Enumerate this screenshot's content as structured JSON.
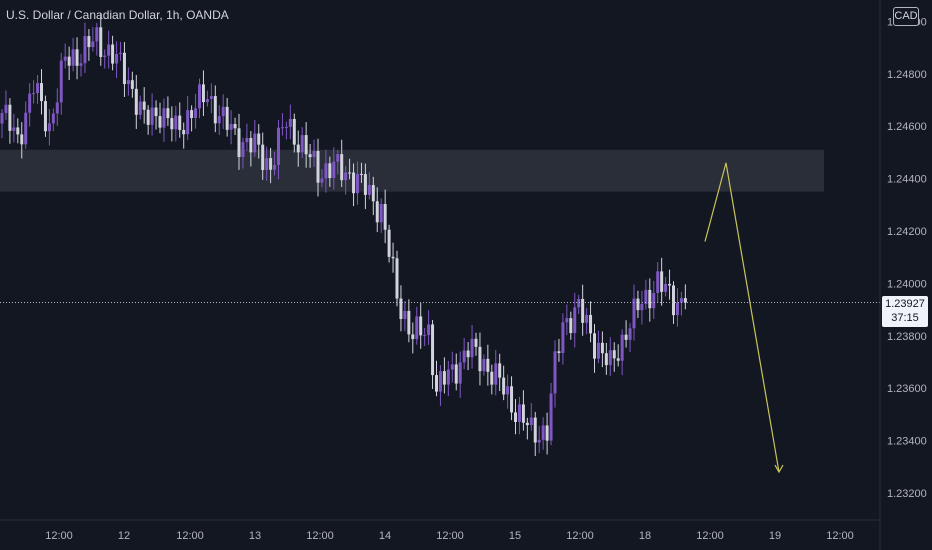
{
  "header": {
    "title": "U.S. Dollar / Canadian Dollar, 1h, OANDA",
    "currency_badge": "CAD"
  },
  "price_tag": {
    "price": "1.23927",
    "countdown": "37:15"
  },
  "colors": {
    "background": "#131722",
    "bull_candle": "#7e57c2",
    "bear_candle": "#d1d4dc",
    "zone_fill": "#2a2e39",
    "arrow": "#c9c45a",
    "axis_text": "#b2b5be"
  },
  "chart_data": {
    "type": "candlestick",
    "symbol": "USDCAD",
    "interval": "1h",
    "ylim": [
      1.231,
      1.25
    ],
    "y_ticks": [
      "1.23200",
      "1.23400",
      "1.23600",
      "1.23800",
      "1.24000",
      "1.24200",
      "1.24400",
      "1.24600",
      "1.24800",
      "1.25000"
    ],
    "x_ticks": [
      "12:00",
      "12",
      "12:00",
      "13",
      "12:00",
      "14",
      "12:00",
      "15",
      "12:00",
      "18",
      "12:00",
      "19",
      "12:00"
    ],
    "current_price": 1.23927,
    "resistance_zone": [
      1.2435,
      1.2451
    ],
    "projected_path": [
      [
        0,
        1.2416
      ],
      [
        1,
        1.2446
      ],
      [
        2,
        1.2328
      ]
    ],
    "close_anchors": [
      [
        0,
        1.2465
      ],
      [
        4,
        1.2455
      ],
      [
        8,
        1.2475
      ],
      [
        12,
        1.246
      ],
      [
        16,
        1.2485
      ],
      [
        20,
        1.2488
      ],
      [
        24,
        1.2493
      ],
      [
        28,
        1.2487
      ],
      [
        32,
        1.2478
      ],
      [
        36,
        1.2462
      ],
      [
        40,
        1.2466
      ],
      [
        44,
        1.2458
      ],
      [
        48,
        1.2466
      ],
      [
        52,
        1.2472
      ],
      [
        56,
        1.2462
      ],
      [
        60,
        1.2455
      ],
      [
        64,
        1.2452
      ],
      [
        68,
        1.2445
      ],
      [
        72,
        1.2462
      ],
      [
        76,
        1.2452
      ],
      [
        80,
        1.2443
      ],
      [
        84,
        1.2444
      ],
      [
        88,
        1.2442
      ],
      [
        92,
        1.2436
      ],
      [
        96,
        1.2428
      ],
      [
        100,
        1.2395
      ],
      [
        104,
        1.238
      ],
      [
        108,
        1.2382
      ],
      [
        110,
        1.236
      ],
      [
        114,
        1.2366
      ],
      [
        118,
        1.2375
      ],
      [
        122,
        1.237
      ],
      [
        126,
        1.2362
      ],
      [
        130,
        1.2352
      ],
      [
        134,
        1.2343
      ],
      [
        138,
        1.2344
      ],
      [
        140,
        1.2368
      ],
      [
        142,
        1.2385
      ],
      [
        146,
        1.239
      ],
      [
        150,
        1.2378
      ],
      [
        154,
        1.2368
      ],
      [
        158,
        1.2382
      ],
      [
        162,
        1.2393
      ],
      [
        166,
        1.24
      ],
      [
        170,
        1.2394
      ],
      [
        173,
        1.23927
      ]
    ]
  }
}
